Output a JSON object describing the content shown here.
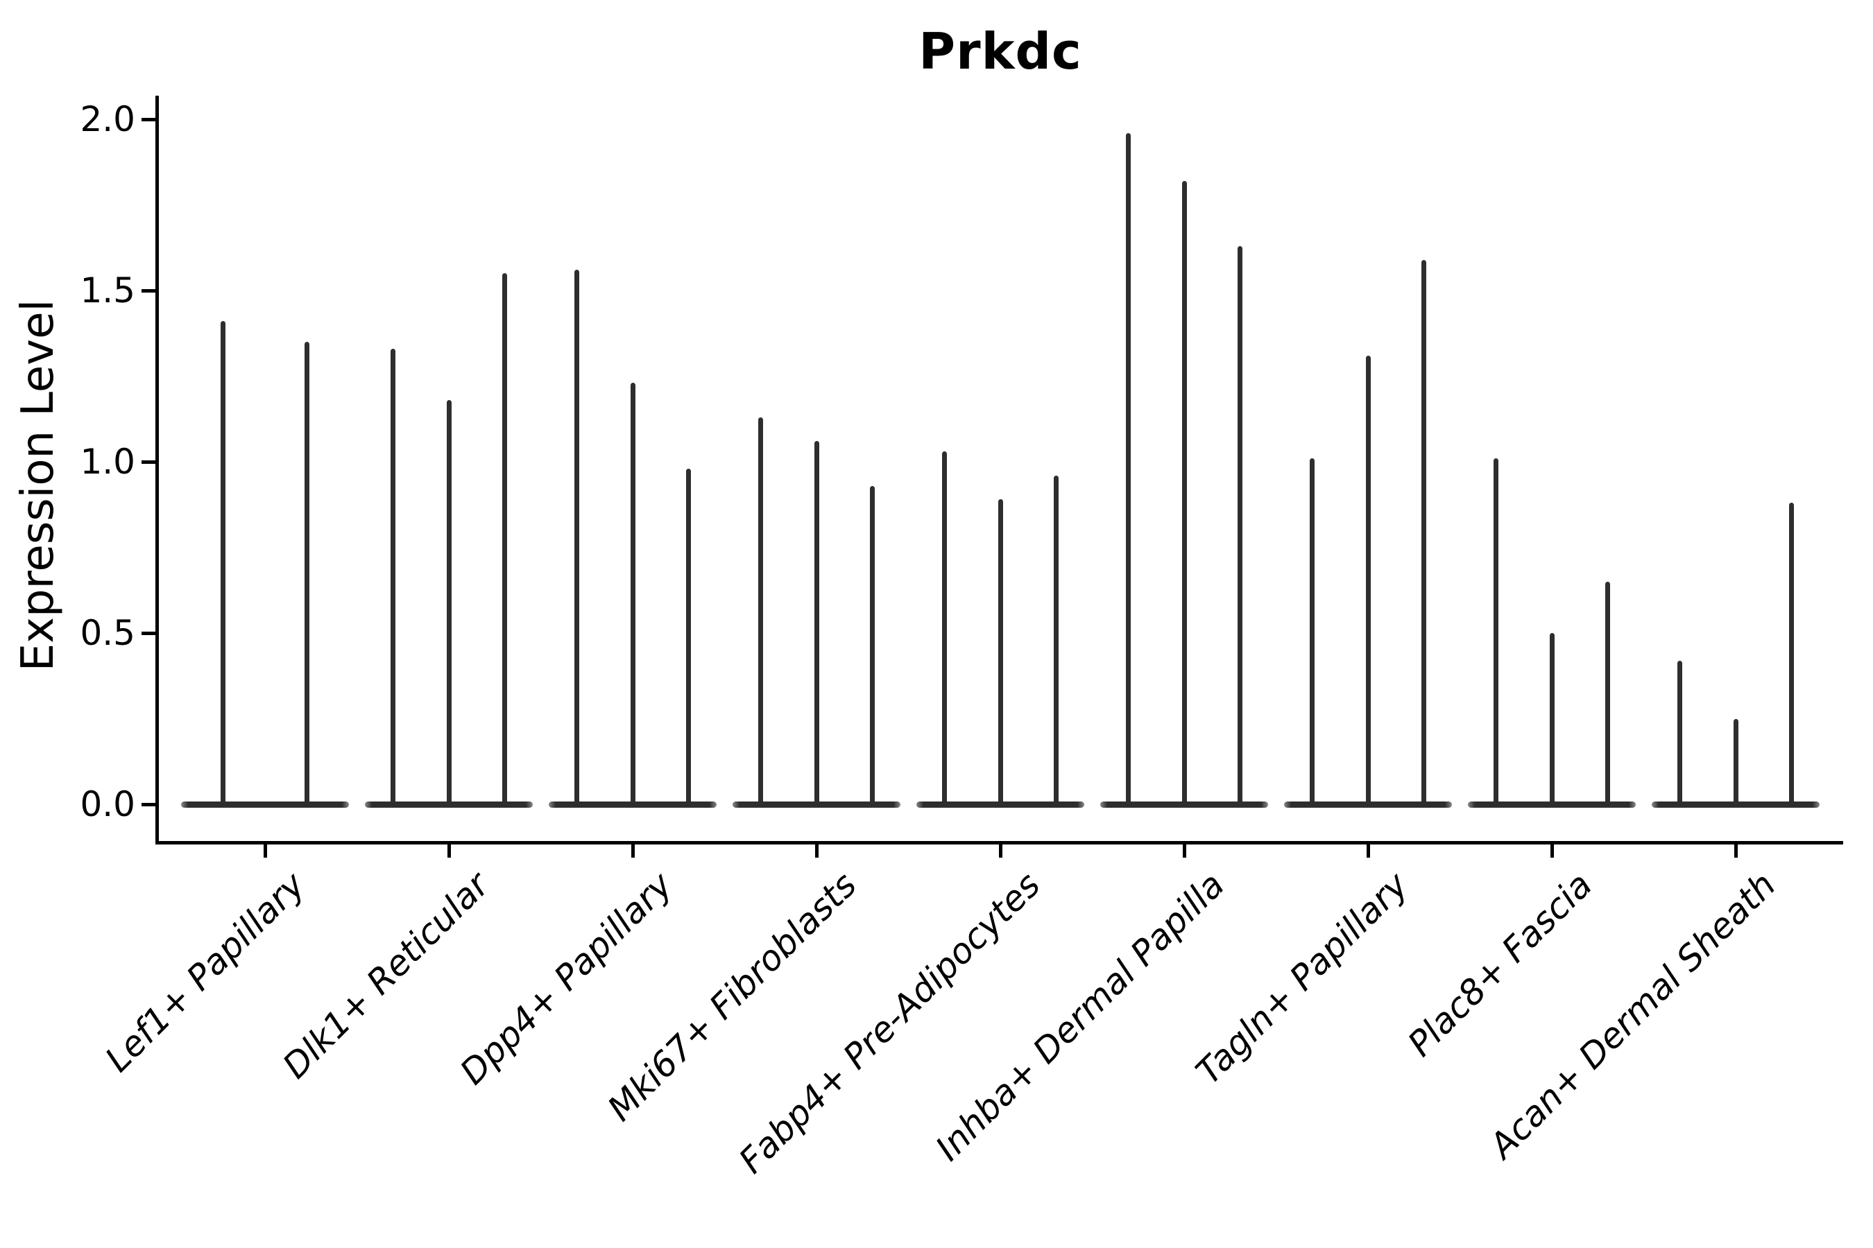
{
  "title": "Prkdc",
  "y_axis": {
    "label": "Expression Level",
    "ticks": [
      "2.0",
      "1.5",
      "1.0",
      "0.5",
      "0.0"
    ],
    "tick_values": [
      2.0,
      1.5,
      1.0,
      0.5,
      0.0
    ]
  },
  "chart_data": {
    "type": "violin",
    "title": "Prkdc",
    "ylabel": "Expression Level",
    "ylim": [
      0.0,
      2.0
    ],
    "grid": false,
    "legend": false,
    "violin_color": "#2e2e2e",
    "note": "Each category shows thin spike-like violins (most cells at 0 expression); spike height = max expression level reached",
    "categories": [
      "Lef1+ Papillary",
      "Dlk1+ Reticular",
      "Dpp4+ Papillary",
      "Mki67+ Fibroblasts",
      "Fabp4+ Pre-Adipocytes",
      "Inhba+ Dermal Papilla",
      "Tagln+ Papillary",
      "Plac8+ Fascia",
      "Acan+ Dermal Sheath"
    ],
    "groups": [
      {
        "category": "Lef1+ Papillary",
        "spike_heights": [
          1.41,
          1.35
        ]
      },
      {
        "category": "Dlk1+ Reticular",
        "spike_heights": [
          1.33,
          1.18,
          1.55
        ]
      },
      {
        "category": "Dpp4+ Papillary",
        "spike_heights": [
          1.56,
          1.23,
          0.98
        ]
      },
      {
        "category": "Mki67+ Fibroblasts",
        "spike_heights": [
          1.13,
          1.06,
          0.93
        ]
      },
      {
        "category": "Fabp4+ Pre-Adipocytes",
        "spike_heights": [
          1.03,
          0.89,
          0.96
        ]
      },
      {
        "category": "Inhba+ Dermal Papilla",
        "spike_heights": [
          1.96,
          1.82,
          1.63
        ]
      },
      {
        "category": "Tagln+ Papillary",
        "spike_heights": [
          1.01,
          1.31,
          1.59
        ]
      },
      {
        "category": "Plac8+ Fascia",
        "spike_heights": [
          1.01,
          0.5,
          0.65
        ]
      },
      {
        "category": "Acan+ Dermal Sheath",
        "spike_heights": [
          0.42,
          0.25,
          0.88
        ]
      }
    ]
  }
}
